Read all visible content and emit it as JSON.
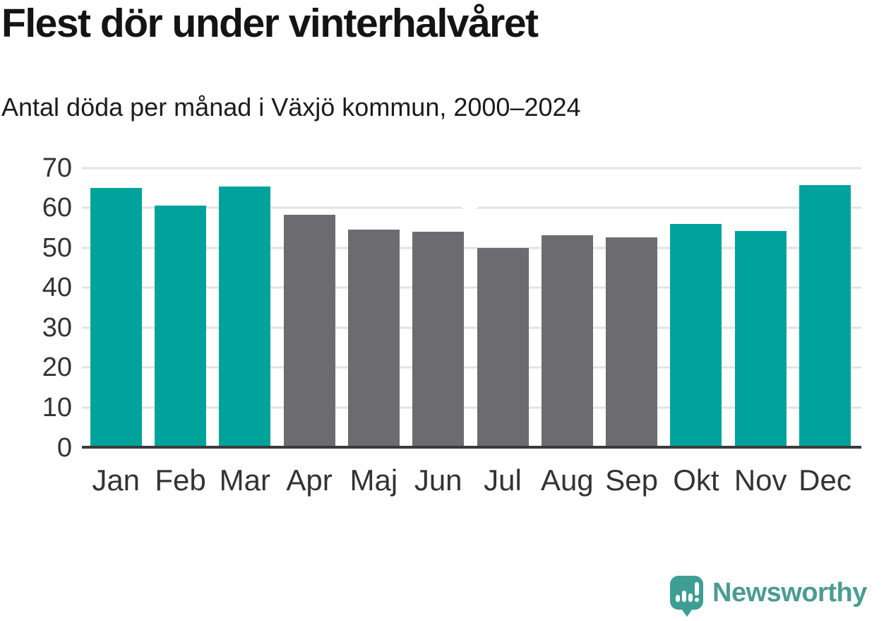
{
  "header": {
    "title": "Flest dör under vinterhalvåret",
    "subtitle": "Antal döda per månad i Växjö kommun, 2000–2024"
  },
  "chart_data": {
    "type": "bar",
    "title": "Flest dör under vinterhalvåret",
    "subtitle": "Antal döda per månad i Växjö kommun, 2000–2024",
    "categories": [
      "Jan",
      "Feb",
      "Mar",
      "Apr",
      "Maj",
      "Jun",
      "Jul",
      "Aug",
      "Sep",
      "Okt",
      "Nov",
      "Dec"
    ],
    "values": [
      64.7,
      60.3,
      65.1,
      58.0,
      54.2,
      53.7,
      49.6,
      52.8,
      52.3,
      55.6,
      54.0,
      65.4
    ],
    "bar_colors": [
      "teal",
      "teal",
      "teal",
      "gray",
      "gray",
      "gray",
      "gray",
      "gray",
      "gray",
      "teal",
      "teal",
      "teal"
    ],
    "palette": {
      "teal": "#00a39b",
      "gray": "#6b6b70"
    },
    "highlight_meaning": "teal = winter half-year months, gray = summer half-year months",
    "xlabel": "",
    "ylabel": "",
    "ylim": [
      0,
      70
    ],
    "yticks": [
      0,
      10,
      20,
      30,
      40,
      50,
      60,
      70
    ],
    "grid": "horizontal",
    "legend": "none"
  },
  "branding": {
    "logo_text": "Newsworthy",
    "logo_text_color": "#4a9c92",
    "logo_icon_color": "#3f9e93"
  }
}
